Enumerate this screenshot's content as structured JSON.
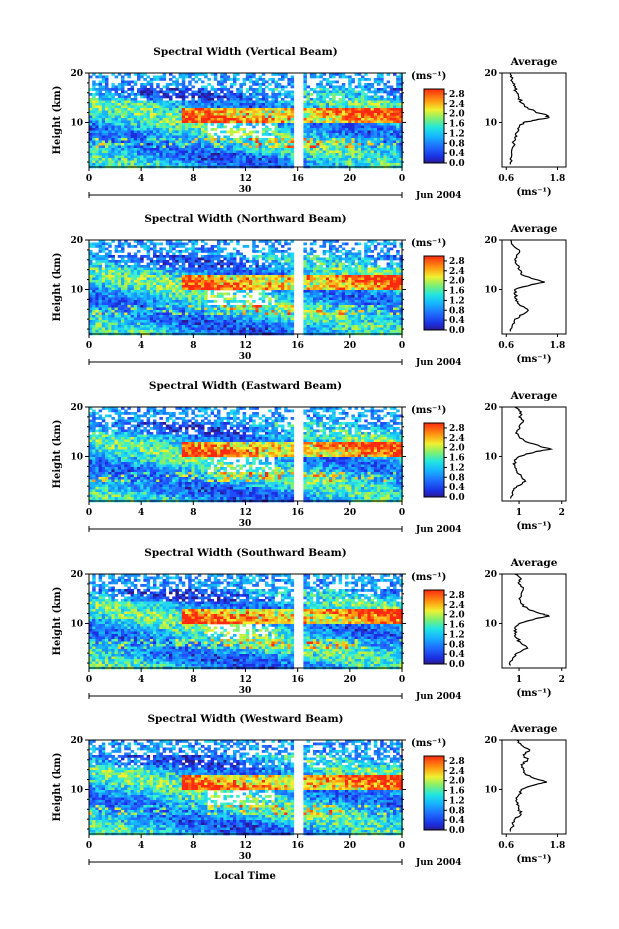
{
  "figure": {
    "x_axis_label": "Local Time",
    "date_label": "Jun 2004",
    "day_label": "30",
    "colorbar_unit": "(ms⁻¹)",
    "average_title": "Average",
    "average_unit": "(ms⁻¹)"
  },
  "chart_data": [
    {
      "type": "heatmap",
      "title": "Spectral Width (Vertical Beam)",
      "xlabel": "",
      "ylabel": "Height (km)",
      "x_ticks": [
        "0",
        "4",
        "8",
        "12",
        "16",
        "20",
        "0"
      ],
      "y_ticks": [
        "20",
        "10"
      ],
      "xlim": [
        0,
        24
      ],
      "ylim": [
        1,
        20
      ],
      "colorbar_ticks": [
        "2.8",
        "2.4",
        "2.0",
        "1.6",
        "1.2",
        "0.8",
        "0.4",
        "0.0"
      ],
      "colorbar_range": [
        0,
        3.0
      ],
      "data_gap_hour": 16,
      "profile": {
        "title": "Average",
        "xlabel": "(ms⁻¹)",
        "x_ticks": [
          "0.6",
          "1.8"
        ],
        "xlim": [
          0.5,
          2.0
        ],
        "y_ticks": [
          "20",
          "10"
        ],
        "height_km": [
          1.5,
          3,
          5,
          7,
          8,
          9,
          10,
          10.5,
          11,
          11.5,
          12,
          13,
          14,
          15,
          16,
          17,
          18,
          19,
          20
        ],
        "width_ms": [
          0.7,
          0.72,
          0.75,
          0.8,
          0.85,
          0.9,
          1.0,
          1.3,
          1.6,
          1.55,
          1.3,
          1.1,
          0.95,
          0.9,
          0.85,
          0.8,
          0.75,
          0.75,
          0.7
        ]
      }
    },
    {
      "type": "heatmap",
      "title": "Spectral Width (Northward Beam)",
      "xlabel": "",
      "ylabel": "Height (km)",
      "x_ticks": [
        "0",
        "4",
        "8",
        "12",
        "16",
        "20",
        "0"
      ],
      "y_ticks": [
        "20",
        "10"
      ],
      "xlim": [
        0,
        24
      ],
      "ylim": [
        1,
        20
      ],
      "colorbar_ticks": [
        "2.8",
        "2.4",
        "2.0",
        "1.6",
        "1.2",
        "0.8",
        "0.4",
        "0.0"
      ],
      "colorbar_range": [
        0,
        3.0
      ],
      "data_gap_hour": 16,
      "profile": {
        "title": "Average",
        "xlabel": "(ms⁻¹)",
        "x_ticks": [
          "0.6",
          "1.8"
        ],
        "xlim": [
          0.5,
          2.0
        ],
        "y_ticks": [
          "20",
          "10"
        ],
        "height_km": [
          1.5,
          3,
          4,
          5,
          6,
          7,
          8,
          9,
          10,
          11,
          11.5,
          12,
          13,
          14,
          15,
          16,
          17,
          18,
          19,
          20
        ],
        "width_ms": [
          0.7,
          0.75,
          0.8,
          1.0,
          1.1,
          0.9,
          0.85,
          0.8,
          0.8,
          1.2,
          1.5,
          1.3,
          0.95,
          0.9,
          0.85,
          0.8,
          0.85,
          0.9,
          0.75,
          0.7
        ]
      }
    },
    {
      "type": "heatmap",
      "title": "Spectral Width (Eastward Beam)",
      "xlabel": "",
      "ylabel": "Height (km)",
      "x_ticks": [
        "0",
        "4",
        "8",
        "12",
        "16",
        "20",
        "0"
      ],
      "y_ticks": [
        "20",
        "10"
      ],
      "xlim": [
        0,
        24
      ],
      "ylim": [
        1,
        20
      ],
      "colorbar_ticks": [
        "2.8",
        "2.4",
        "2.0",
        "1.6",
        "1.2",
        "0.8",
        "0.4",
        "0.0"
      ],
      "colorbar_range": [
        0,
        3.0
      ],
      "data_gap_hour": 16,
      "profile": {
        "title": "Average",
        "xlabel": "(ms⁻¹)",
        "x_ticks": [
          "1",
          "2"
        ],
        "xlim": [
          0.6,
          2.1
        ],
        "y_ticks": [
          "20",
          "10"
        ],
        "height_km": [
          1.5,
          3,
          4,
          5,
          6,
          7,
          8,
          9,
          10,
          11,
          11.5,
          12,
          13,
          14,
          15,
          16,
          17,
          18,
          19,
          20
        ],
        "width_ms": [
          0.8,
          0.85,
          0.95,
          1.15,
          1.05,
          0.95,
          0.9,
          0.9,
          1.0,
          1.4,
          1.75,
          1.5,
          1.15,
          1.0,
          0.95,
          1.0,
          1.1,
          1.0,
          1.05,
          0.9
        ]
      }
    },
    {
      "type": "heatmap",
      "title": "Spectral Width (Southward Beam)",
      "xlabel": "",
      "ylabel": "Height (km)",
      "x_ticks": [
        "0",
        "4",
        "8",
        "12",
        "16",
        "20",
        "0"
      ],
      "y_ticks": [
        "20",
        "10"
      ],
      "xlim": [
        0,
        24
      ],
      "ylim": [
        1,
        20
      ],
      "colorbar_ticks": [
        "2.8",
        "2.4",
        "2.0",
        "1.6",
        "1.2",
        "0.8",
        "0.4",
        "0.0"
      ],
      "colorbar_range": [
        0,
        3.0
      ],
      "data_gap_hour": 16,
      "profile": {
        "title": "Average",
        "xlabel": "(ms⁻¹)",
        "x_ticks": [
          "1",
          "2"
        ],
        "xlim": [
          0.6,
          2.1
        ],
        "y_ticks": [
          "20",
          "10"
        ],
        "height_km": [
          1.5,
          3,
          4,
          5,
          6,
          7,
          8,
          9,
          10,
          11,
          11.5,
          12,
          13,
          14,
          15,
          16,
          17,
          18,
          19,
          20
        ],
        "width_ms": [
          0.8,
          0.85,
          0.95,
          1.2,
          1.05,
          0.95,
          0.9,
          0.9,
          1.0,
          1.4,
          1.7,
          1.5,
          1.2,
          1.05,
          1.0,
          1.05,
          1.1,
          1.0,
          1.05,
          0.9
        ]
      }
    },
    {
      "type": "heatmap",
      "title": "Spectral Width (Westward Beam)",
      "xlabel": "",
      "ylabel": "Height (km)",
      "x_ticks": [
        "0",
        "4",
        "8",
        "12",
        "16",
        "20",
        "0"
      ],
      "y_ticks": [
        "20",
        "10"
      ],
      "xlim": [
        0,
        24
      ],
      "ylim": [
        1,
        20
      ],
      "colorbar_ticks": [
        "2.8",
        "2.4",
        "2.0",
        "1.6",
        "1.2",
        "0.8",
        "0.4",
        "0.0"
      ],
      "colorbar_range": [
        0,
        3.0
      ],
      "data_gap_hour": 16,
      "profile": {
        "title": "Average",
        "xlabel": "(ms⁻¹)",
        "x_ticks": [
          "0.6",
          "1.8"
        ],
        "xlim": [
          0.5,
          2.0
        ],
        "y_ticks": [
          "20",
          "10"
        ],
        "height_km": [
          1.5,
          3,
          4,
          5,
          6,
          7,
          8,
          9,
          10,
          11,
          11.5,
          12,
          13,
          14,
          15,
          16,
          17,
          18,
          19,
          20
        ],
        "width_ms": [
          0.7,
          0.75,
          0.8,
          0.95,
          0.9,
          0.85,
          0.85,
          0.9,
          0.95,
          1.3,
          1.55,
          1.35,
          1.05,
          1.0,
          0.95,
          1.1,
          1.0,
          1.15,
          0.95,
          0.85
        ]
      }
    }
  ]
}
